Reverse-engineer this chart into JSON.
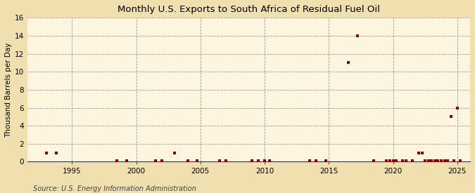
{
  "title": "Monthly U.S. Exports to South Africa of Residual Fuel Oil",
  "ylabel": "Thousand Barrels per Day",
  "source": "Source: U.S. Energy Information Administration",
  "xlim": [
    1991.5,
    2026
  ],
  "ylim": [
    0,
    16
  ],
  "yticks": [
    0,
    2,
    4,
    6,
    8,
    10,
    12,
    14,
    16
  ],
  "xticks": [
    1995,
    2000,
    2005,
    2010,
    2015,
    2020,
    2025
  ],
  "fig_bg_color": "#f0e0b0",
  "plot_bg_color": "#fdf5e0",
  "marker_color": "#8b0000",
  "data_points": [
    [
      1993.0,
      1.0
    ],
    [
      1993.75,
      1.0
    ],
    [
      1998.5,
      0.15
    ],
    [
      1999.25,
      0.15
    ],
    [
      2001.5,
      0.15
    ],
    [
      2002.0,
      0.15
    ],
    [
      2003.0,
      1.0
    ],
    [
      2004.0,
      0.15
    ],
    [
      2004.75,
      0.15
    ],
    [
      2006.5,
      0.15
    ],
    [
      2007.0,
      0.15
    ],
    [
      2009.0,
      0.15
    ],
    [
      2009.5,
      0.15
    ],
    [
      2010.0,
      0.15
    ],
    [
      2010.4,
      0.15
    ],
    [
      2013.5,
      0.15
    ],
    [
      2014.0,
      0.15
    ],
    [
      2014.75,
      0.15
    ],
    [
      2016.5,
      11.0
    ],
    [
      2017.25,
      14.0
    ],
    [
      2018.5,
      0.15
    ],
    [
      2019.5,
      0.15
    ],
    [
      2019.75,
      0.15
    ],
    [
      2020.0,
      0.15
    ],
    [
      2020.25,
      0.15
    ],
    [
      2020.75,
      0.15
    ],
    [
      2021.0,
      0.15
    ],
    [
      2021.5,
      0.15
    ],
    [
      2022.0,
      1.0
    ],
    [
      2022.25,
      1.0
    ],
    [
      2022.5,
      0.15
    ],
    [
      2022.75,
      0.15
    ],
    [
      2023.0,
      0.15
    ],
    [
      2023.25,
      0.15
    ],
    [
      2023.5,
      0.15
    ],
    [
      2023.75,
      0.15
    ],
    [
      2024.0,
      0.15
    ],
    [
      2024.25,
      0.15
    ],
    [
      2024.5,
      5.0
    ],
    [
      2024.75,
      0.15
    ],
    [
      2025.0,
      6.0
    ],
    [
      2025.25,
      0.15
    ]
  ]
}
